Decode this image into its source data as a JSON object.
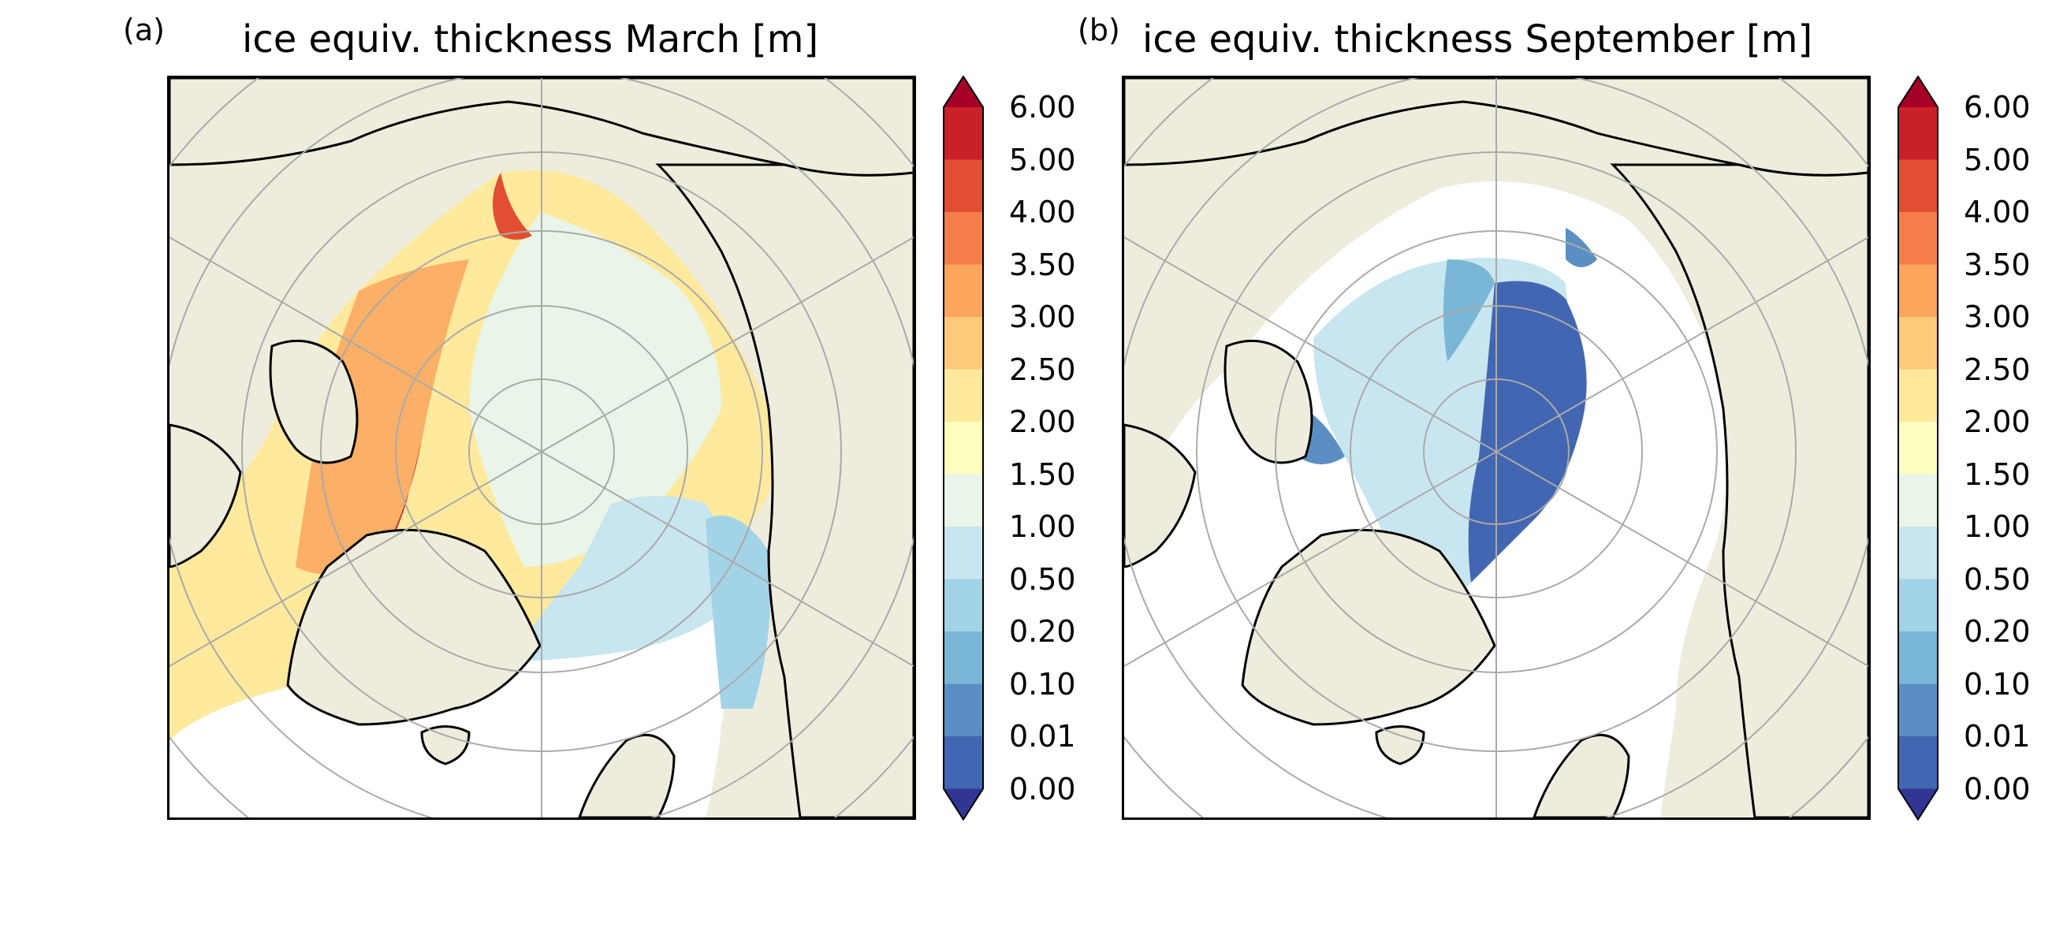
{
  "panels": [
    {
      "label": "(a)",
      "title": "ice equiv. thickness March [m]",
      "month": "March"
    },
    {
      "label": "(b)",
      "title": "ice equiv. thickness September [m]",
      "month": "September"
    }
  ],
  "colorbar": {
    "tick_labels": [
      "6.00",
      "5.00",
      "4.00",
      "3.50",
      "3.00",
      "2.50",
      "2.00",
      "1.50",
      "1.00",
      "0.50",
      "0.20",
      "0.10",
      "0.01",
      "0.00"
    ],
    "colors_top_to_bottom": [
      "#c92127",
      "#e24e32",
      "#f57d4a",
      "#fca55d",
      "#fdca7a",
      "#fee99d",
      "#ffffbf",
      "#e9f5e8",
      "#c8e6ef",
      "#a3d3e6",
      "#7ab6d6",
      "#5b8fc3",
      "#4266b1"
    ],
    "extend_max_color": "#a50026",
    "extend_min_color": "#313695",
    "extend": "both"
  },
  "colors": {
    "land": "#eeeddd",
    "ocean": "#ffffff",
    "coast": "#000000",
    "gridlines": "#aaaaaa"
  }
}
